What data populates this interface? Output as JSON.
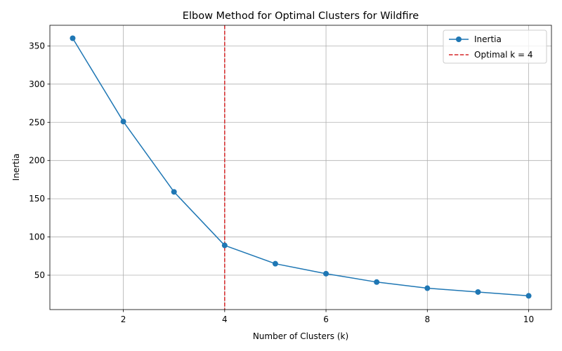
{
  "chart_data": {
    "type": "line",
    "title": "Elbow Method for Optimal Clusters for Wildfire",
    "xlabel": "Number of Clusters (k)",
    "ylabel": "Inertia",
    "xlim": [
      0.55,
      10.45
    ],
    "ylim": [
      5,
      377
    ],
    "xticks": [
      2,
      4,
      6,
      8,
      10
    ],
    "yticks": [
      50,
      100,
      150,
      200,
      250,
      300,
      350
    ],
    "grid": true,
    "legend_position": "top-right",
    "series": [
      {
        "name": "Inertia",
        "color": "#1f77b4",
        "marker": "circle",
        "x": [
          1,
          2,
          3,
          4,
          5,
          6,
          7,
          8,
          9,
          10
        ],
        "values": [
          360,
          251,
          159,
          89,
          65,
          52,
          41,
          33,
          28,
          23
        ]
      }
    ],
    "vline": {
      "x": 4,
      "color": "#d62728",
      "style": "dashed",
      "label": "Optimal k = 4"
    }
  }
}
